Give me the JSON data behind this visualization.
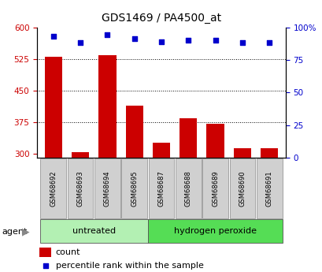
{
  "title": "GDS1469 / PA4500_at",
  "samples": [
    "GSM68692",
    "GSM68693",
    "GSM68694",
    "GSM68695",
    "GSM68687",
    "GSM68688",
    "GSM68689",
    "GSM68690",
    "GSM68691"
  ],
  "counts": [
    530,
    303,
    533,
    413,
    325,
    383,
    370,
    312,
    313
  ],
  "percentile_ranks": [
    93,
    88,
    94,
    91,
    89,
    90,
    90,
    88,
    88
  ],
  "groups": [
    {
      "label": "untreated",
      "start": 0,
      "end": 4
    },
    {
      "label": "hydrogen peroxide",
      "start": 4,
      "end": 9
    }
  ],
  "ylim_left": [
    290,
    600
  ],
  "yticks_left": [
    300,
    375,
    450,
    525,
    600
  ],
  "ylim_right": [
    0,
    100
  ],
  "yticks_right": [
    0,
    25,
    50,
    75,
    100
  ],
  "bar_color": "#cc0000",
  "dot_color": "#0000cc",
  "bar_bottom": 290,
  "group_bg_untreated": "#b3f0b3",
  "group_bg_h2o2": "#55dd55",
  "left_tick_color": "#cc0000",
  "right_tick_color": "#0000cc",
  "legend_count_color": "#cc0000",
  "legend_pct_color": "#0000cc"
}
